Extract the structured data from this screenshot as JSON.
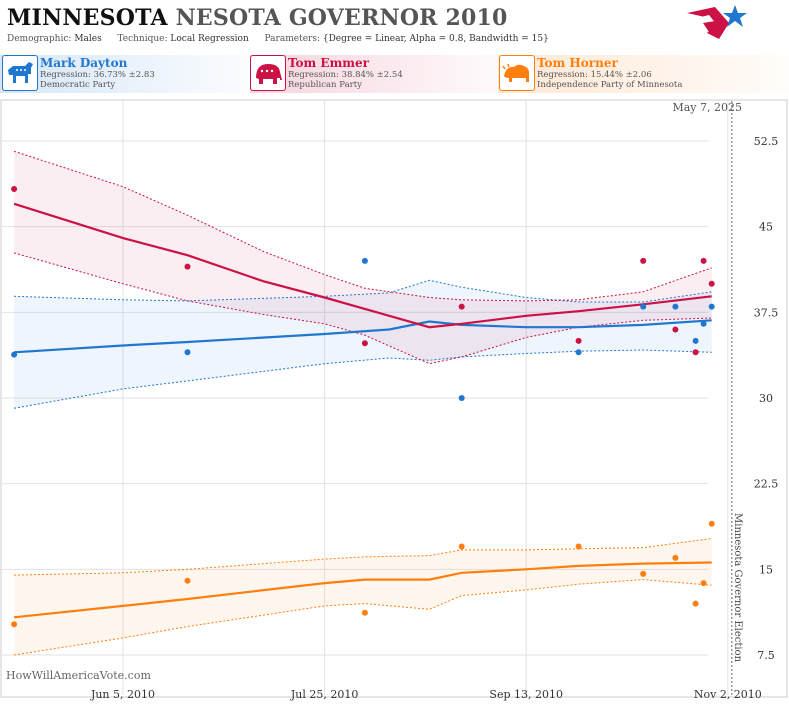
{
  "header": {
    "title_state": "MINNESOTA",
    "title_race": "NESOTA GOVERNOR 2010",
    "demographic_label": "Demographic:",
    "demographic_value": "Males",
    "technique_label": "Technique:",
    "technique_value": "Local Regression",
    "parameters_label": "Parameters:",
    "parameters_value": "{Degree = Linear, Alpha = 0.8, Bandwidth = 15}"
  },
  "logo_icon": "flag-star-icon",
  "candidates": [
    {
      "name": "Mark Dayton",
      "regression": "Regression: 36.73% ±2.83",
      "party": "Democratic Party",
      "color": "#1f77d0",
      "icon": "donkey-icon"
    },
    {
      "name": "Tom Emmer",
      "regression": "Regression: 38.84% ±2.54",
      "party": "Republican Party",
      "color": "#cc1144",
      "icon": "elephant-icon"
    },
    {
      "name": "Tom Horner",
      "regression": "Regression: 15.44% ±2.06",
      "party": "Independence Party of Minnesota",
      "color": "#ff7f0e",
      "icon": "bison-icon"
    }
  ],
  "chart_data": {
    "type": "scatter",
    "title": "",
    "xlabel": "",
    "ylabel": "",
    "x_ticks": [
      "Jun 5, 2010",
      "Jul 25, 2010",
      "Sep 13, 2010",
      "Nov 2, 2010"
    ],
    "x_range": [
      "2010-05-06",
      "2010-11-07"
    ],
    "ylim": [
      4,
      56
    ],
    "y_ticks": [
      "7.5",
      "15",
      "22.5",
      "30",
      "37.5",
      "45",
      "52.5"
    ],
    "grid": true,
    "date_label": "May 7, 2025",
    "election_date": "2010-11-02",
    "election_label": "Minnesota Governor Election",
    "watermark": "HowWillAmericaVote.com",
    "series": [
      {
        "name": "Mark Dayton",
        "color": "#1f77d0",
        "points": [
          [
            "2010-05-09",
            33.8
          ],
          [
            "2010-06-21",
            34.0
          ],
          [
            "2010-08-04",
            42.0
          ],
          [
            "2010-08-28",
            30.0
          ],
          [
            "2010-09-26",
            34.0
          ],
          [
            "2010-10-12",
            38.0
          ],
          [
            "2010-10-20",
            38.0
          ],
          [
            "2010-10-25",
            35.0
          ],
          [
            "2010-10-27",
            36.5
          ],
          [
            "2010-10-29",
            38.0
          ]
        ],
        "trend": [
          [
            "2010-05-09",
            34.0
          ],
          [
            "2010-06-05",
            34.6
          ],
          [
            "2010-06-21",
            34.9
          ],
          [
            "2010-07-25",
            35.6
          ],
          [
            "2010-08-10",
            36.0
          ],
          [
            "2010-08-20",
            36.7
          ],
          [
            "2010-08-28",
            36.4
          ],
          [
            "2010-09-13",
            36.2
          ],
          [
            "2010-09-26",
            36.2
          ],
          [
            "2010-10-12",
            36.4
          ],
          [
            "2010-10-29",
            36.8
          ]
        ],
        "upper": [
          [
            "2010-05-09",
            38.9
          ],
          [
            "2010-06-05",
            38.6
          ],
          [
            "2010-06-21",
            38.5
          ],
          [
            "2010-07-25",
            38.9
          ],
          [
            "2010-08-10",
            39.2
          ],
          [
            "2010-08-20",
            40.3
          ],
          [
            "2010-08-28",
            39.7
          ],
          [
            "2010-09-13",
            38.8
          ],
          [
            "2010-09-26",
            38.4
          ],
          [
            "2010-10-12",
            38.4
          ],
          [
            "2010-10-29",
            39.3
          ]
        ],
        "lower": [
          [
            "2010-05-09",
            29.1
          ],
          [
            "2010-06-05",
            30.8
          ],
          [
            "2010-06-21",
            31.5
          ],
          [
            "2010-07-25",
            33.0
          ],
          [
            "2010-08-10",
            33.5
          ],
          [
            "2010-08-20",
            33.3
          ],
          [
            "2010-08-28",
            33.6
          ],
          [
            "2010-09-13",
            33.9
          ],
          [
            "2010-09-26",
            34.1
          ],
          [
            "2010-10-12",
            34.2
          ],
          [
            "2010-10-29",
            34.0
          ]
        ]
      },
      {
        "name": "Tom Emmer",
        "color": "#cc1144",
        "points": [
          [
            "2010-05-09",
            48.3
          ],
          [
            "2010-06-21",
            41.5
          ],
          [
            "2010-08-04",
            34.8
          ],
          [
            "2010-08-28",
            38.0
          ],
          [
            "2010-09-26",
            35.0
          ],
          [
            "2010-10-12",
            42.0
          ],
          [
            "2010-10-20",
            36.0
          ],
          [
            "2010-10-25",
            34.0
          ],
          [
            "2010-10-27",
            42.0
          ],
          [
            "2010-10-29",
            40.0
          ]
        ],
        "trend": [
          [
            "2010-05-09",
            47.0
          ],
          [
            "2010-06-05",
            44.0
          ],
          [
            "2010-06-21",
            42.5
          ],
          [
            "2010-07-10",
            40.2
          ],
          [
            "2010-07-25",
            38.8
          ],
          [
            "2010-08-04",
            37.8
          ],
          [
            "2010-08-20",
            36.2
          ],
          [
            "2010-08-28",
            36.5
          ],
          [
            "2010-09-13",
            37.2
          ],
          [
            "2010-09-26",
            37.6
          ],
          [
            "2010-10-12",
            38.2
          ],
          [
            "2010-10-29",
            38.9
          ]
        ],
        "upper": [
          [
            "2010-05-09",
            51.6
          ],
          [
            "2010-06-05",
            48.5
          ],
          [
            "2010-06-21",
            46.0
          ],
          [
            "2010-07-10",
            42.8
          ],
          [
            "2010-07-25",
            40.8
          ],
          [
            "2010-08-04",
            39.6
          ],
          [
            "2010-08-20",
            38.8
          ],
          [
            "2010-08-28",
            38.6
          ],
          [
            "2010-09-13",
            38.5
          ],
          [
            "2010-09-26",
            38.6
          ],
          [
            "2010-10-12",
            39.3
          ],
          [
            "2010-10-29",
            41.4
          ]
        ],
        "lower": [
          [
            "2010-05-09",
            42.7
          ],
          [
            "2010-06-05",
            40.0
          ],
          [
            "2010-06-21",
            38.5
          ],
          [
            "2010-07-10",
            37.3
          ],
          [
            "2010-07-25",
            36.5
          ],
          [
            "2010-08-04",
            35.5
          ],
          [
            "2010-08-20",
            33.0
          ],
          [
            "2010-08-28",
            33.6
          ],
          [
            "2010-09-13",
            35.3
          ],
          [
            "2010-09-26",
            36.2
          ],
          [
            "2010-10-12",
            36.8
          ],
          [
            "2010-10-29",
            37.0
          ]
        ]
      },
      {
        "name": "Tom Horner",
        "color": "#ff7f0e",
        "points": [
          [
            "2010-05-09",
            10.2
          ],
          [
            "2010-06-21",
            14.0
          ],
          [
            "2010-08-04",
            11.2
          ],
          [
            "2010-08-28",
            17.0
          ],
          [
            "2010-09-26",
            17.0
          ],
          [
            "2010-10-12",
            14.6
          ],
          [
            "2010-10-20",
            16.0
          ],
          [
            "2010-10-25",
            12.0
          ],
          [
            "2010-10-27",
            13.8
          ],
          [
            "2010-10-29",
            19.0
          ]
        ],
        "trend": [
          [
            "2010-05-09",
            10.8
          ],
          [
            "2010-06-05",
            11.8
          ],
          [
            "2010-06-21",
            12.4
          ],
          [
            "2010-07-25",
            13.8
          ],
          [
            "2010-08-04",
            14.1
          ],
          [
            "2010-08-20",
            14.1
          ],
          [
            "2010-08-28",
            14.7
          ],
          [
            "2010-09-13",
            15.0
          ],
          [
            "2010-09-26",
            15.3
          ],
          [
            "2010-10-12",
            15.5
          ],
          [
            "2010-10-29",
            15.6
          ]
        ],
        "upper": [
          [
            "2010-05-09",
            14.5
          ],
          [
            "2010-06-05",
            14.7
          ],
          [
            "2010-06-21",
            15.0
          ],
          [
            "2010-07-25",
            15.9
          ],
          [
            "2010-08-04",
            16.1
          ],
          [
            "2010-08-20",
            16.2
          ],
          [
            "2010-08-28",
            16.7
          ],
          [
            "2010-09-13",
            16.7
          ],
          [
            "2010-09-26",
            16.8
          ],
          [
            "2010-10-12",
            16.9
          ],
          [
            "2010-10-29",
            17.7
          ]
        ],
        "lower": [
          [
            "2010-05-09",
            7.5
          ],
          [
            "2010-06-05",
            9.0
          ],
          [
            "2010-06-21",
            10.0
          ],
          [
            "2010-07-25",
            11.8
          ],
          [
            "2010-08-04",
            12.0
          ],
          [
            "2010-08-20",
            11.5
          ],
          [
            "2010-08-28",
            12.7
          ],
          [
            "2010-09-13",
            13.2
          ],
          [
            "2010-09-26",
            13.7
          ],
          [
            "2010-10-12",
            14.1
          ],
          [
            "2010-10-29",
            13.6
          ]
        ]
      }
    ]
  }
}
